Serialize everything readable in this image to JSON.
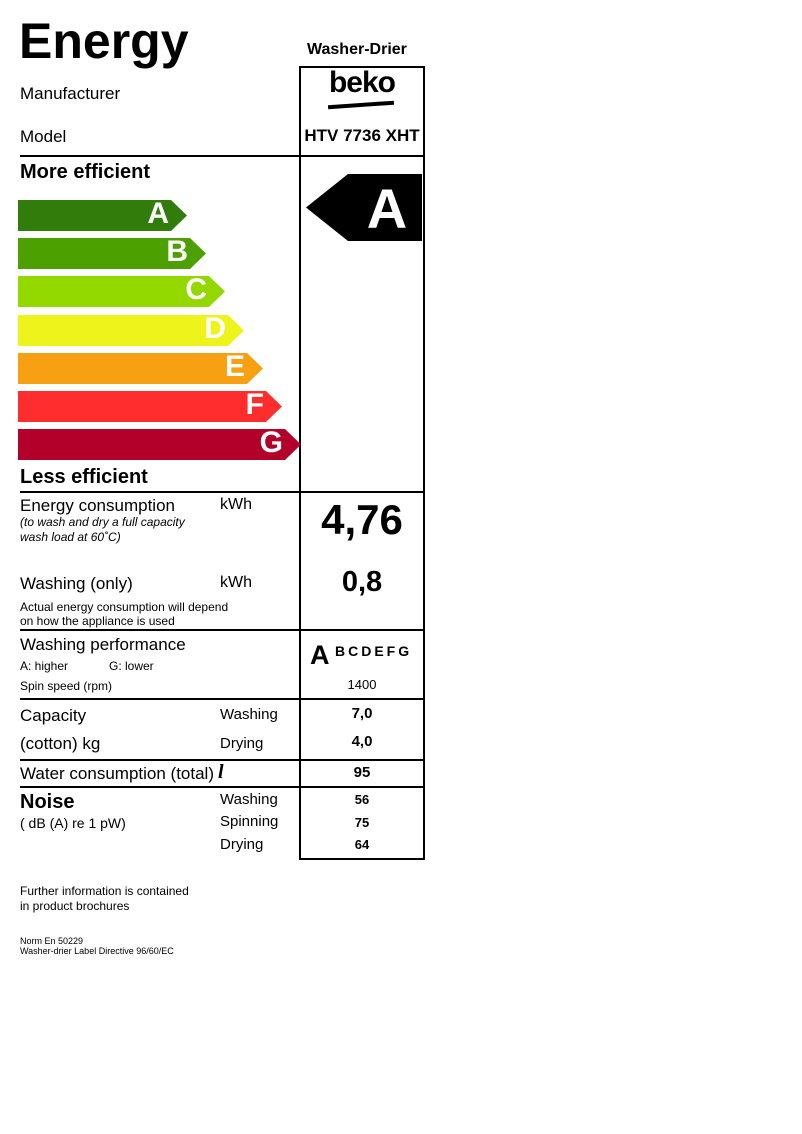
{
  "header": {
    "title": "Energy",
    "appliance_type": "Washer-Drier",
    "manufacturer_label": "Manufacturer",
    "manufacturer": "beko",
    "model_label": "Model",
    "model": "HTV 7736 XHT"
  },
  "scale": {
    "more_efficient": "More efficient",
    "less_efficient": "Less efficient",
    "classes": [
      {
        "letter": "A",
        "color": "#317c0b"
      },
      {
        "letter": "B",
        "color": "#4ca100"
      },
      {
        "letter": "C",
        "color": "#93d900"
      },
      {
        "letter": "D",
        "color": "#eef31b"
      },
      {
        "letter": "E",
        "color": "#f7a012"
      },
      {
        "letter": "F",
        "color": "#ff2d2d"
      },
      {
        "letter": "G",
        "color": "#b3002a"
      }
    ],
    "rating": "A"
  },
  "energy": {
    "label": "Energy consumption",
    "unit": "kWh",
    "note1": "(to wash and dry a full capacity",
    "note2": "wash load at 60˚C)",
    "value": "4,76"
  },
  "washing_only": {
    "label": "Washing (only)",
    "unit": "kWh",
    "note1": "Actual energy consumption will depend",
    "note2": "on how the appliance is used",
    "value": "0,8"
  },
  "performance": {
    "label": "Washing performance",
    "higher": "A: higher",
    "lower": "G: lower",
    "rating": "A",
    "other_classes": "BCDEFG",
    "spin_label": "Spin speed (rpm)",
    "spin": "1400"
  },
  "capacity": {
    "label1": "Capacity",
    "label2": "(cotton) kg",
    "washing_label": "Washing",
    "washing": "7,0",
    "drying_label": "Drying",
    "drying": "4,0"
  },
  "water": {
    "label": "Water consumption (total)",
    "unit": "l",
    "value": "95"
  },
  "noise": {
    "label": "Noise",
    "unit": "( dB (A) re 1 pW)",
    "washing_label": "Washing",
    "washing": "56",
    "spinning_label": "Spinning",
    "spinning": "75",
    "drying_label": "Drying",
    "drying": "64"
  },
  "footer": {
    "info1": "Further information is contained",
    "info2": "in product brochures",
    "norm": "Norm En 50229",
    "directive": "Washer-drier Label Directive 96/60/EC"
  }
}
